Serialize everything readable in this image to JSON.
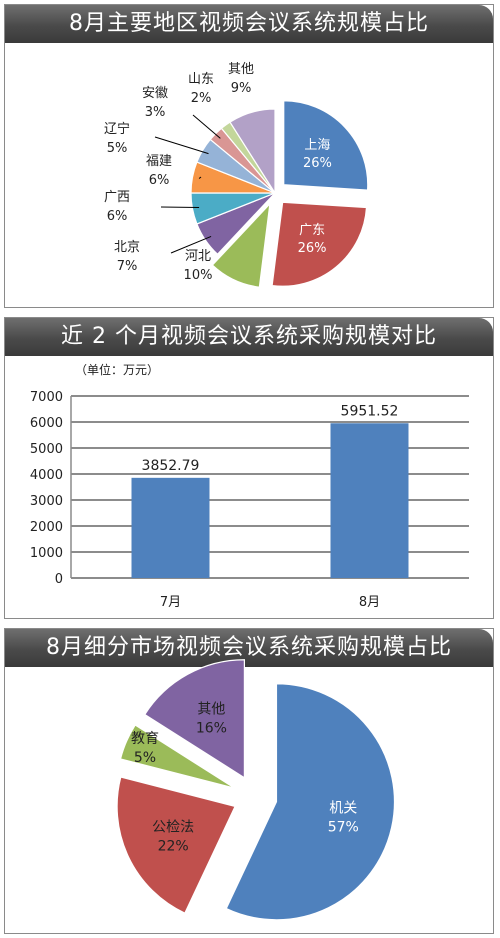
{
  "chart_data": [
    {
      "type": "pie",
      "title": "8月主要地区视频会议系统规模占比",
      "slices": [
        {
          "label": "上海",
          "value": 26,
          "pct_label": "26%",
          "color": "#4f81bd",
          "exploded": true,
          "label_inside": true,
          "label_color": "#ffffff"
        },
        {
          "label": "广东",
          "value": 26,
          "pct_label": "26%",
          "color": "#c0504d",
          "exploded": true,
          "label_inside": true,
          "label_color": "#ffffff"
        },
        {
          "label": "河北",
          "value": 10,
          "pct_label": "10%",
          "color": "#9bbb59",
          "exploded": true,
          "label_inside": false
        },
        {
          "label": "北京",
          "value": 7,
          "pct_label": "7%",
          "color": "#8064a2",
          "exploded": false,
          "label_inside": false
        },
        {
          "label": "广西",
          "value": 6,
          "pct_label": "6%",
          "color": "#4bacc6",
          "exploded": false,
          "label_inside": false
        },
        {
          "label": "福建",
          "value": 6,
          "pct_label": "6%",
          "color": "#f79646",
          "exploded": false,
          "label_inside": false
        },
        {
          "label": "辽宁",
          "value": 5,
          "pct_label": "5%",
          "color": "#95b3d7",
          "exploded": false,
          "label_inside": false
        },
        {
          "label": "安徽",
          "value": 3,
          "pct_label": "3%",
          "color": "#d99694",
          "exploded": false,
          "label_inside": false
        },
        {
          "label": "山东",
          "value": 2,
          "pct_label": "2%",
          "color": "#c3d69b",
          "exploded": false,
          "label_inside": false
        },
        {
          "label": "其他",
          "value": 9,
          "pct_label": "9%",
          "color": "#b2a1c7",
          "exploded": false,
          "label_inside": false
        }
      ]
    },
    {
      "type": "bar",
      "title": "近 2 个月视频会议系统采购规模对比",
      "unit_note": "（单位：万元）",
      "categories": [
        "7月",
        "8月"
      ],
      "values": [
        3852.79,
        5951.52
      ],
      "value_labels": [
        "3852.79",
        "5951.52"
      ],
      "ylim": [
        0,
        7000
      ],
      "yticks": [
        0,
        1000,
        2000,
        3000,
        4000,
        5000,
        6000,
        7000
      ],
      "grid": true,
      "bar_color": "#4f81bd"
    },
    {
      "type": "pie",
      "title": "8月细分市场视频会议系统采购规模占比",
      "slices": [
        {
          "label": "机关",
          "value": 57,
          "pct_label": "57%",
          "color": "#4f81bd",
          "exploded": true
        },
        {
          "label": "公检法",
          "value": 22,
          "pct_label": "22%",
          "color": "#c0504d",
          "exploded": true
        },
        {
          "label": "教育",
          "value": 5,
          "pct_label": "5%",
          "color": "#9bbb59",
          "exploded": true
        },
        {
          "label": "其他",
          "value": 16,
          "pct_label": "16%",
          "color": "#8064a2",
          "exploded": true
        }
      ]
    }
  ]
}
